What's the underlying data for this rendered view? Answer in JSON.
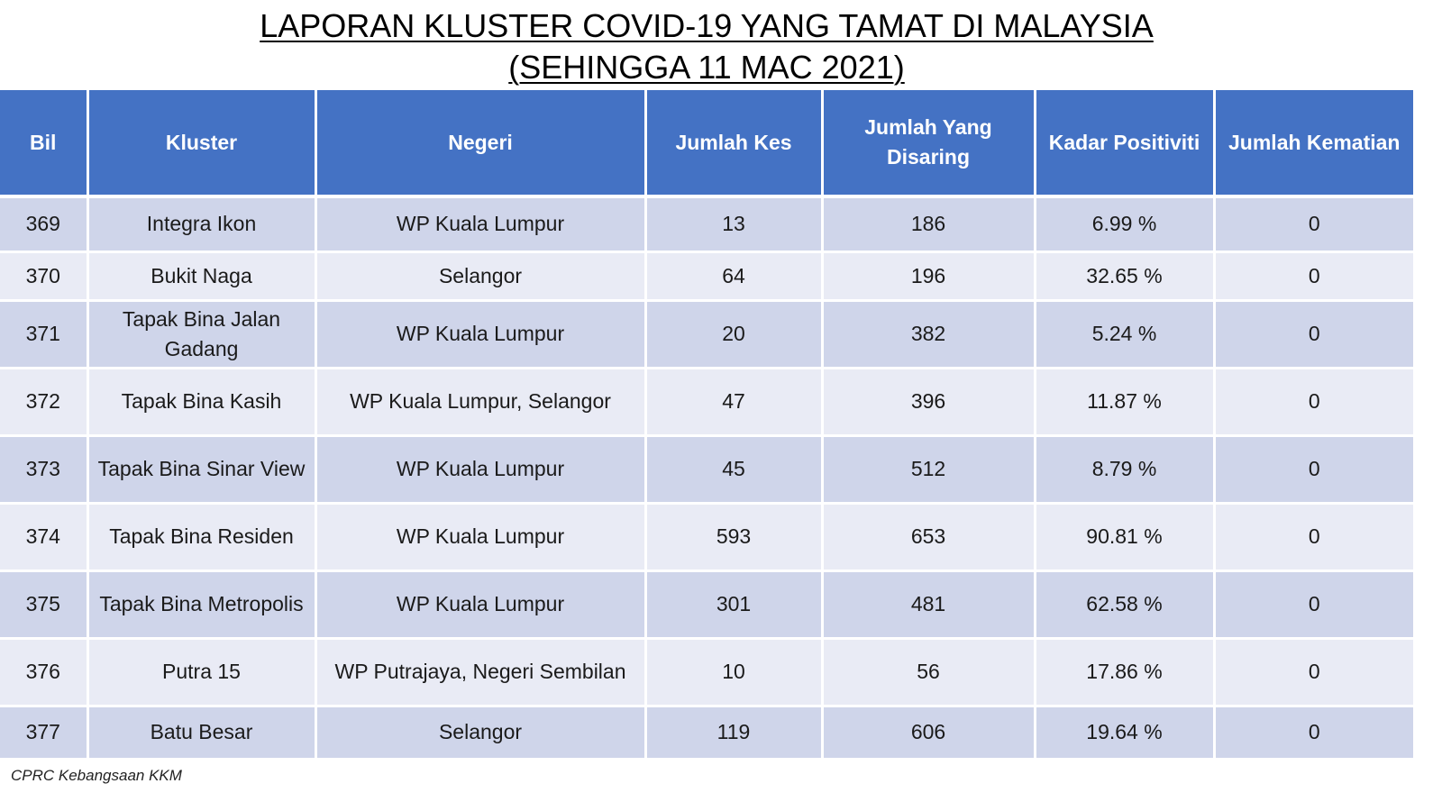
{
  "title": {
    "line1": "LAPORAN KLUSTER COVID-19 YANG TAMAT DI MALAYSIA",
    "line2": "(SEHINGGA  11 MAC 2021)"
  },
  "table": {
    "headers": {
      "bil": "Bil",
      "kluster": "Kluster",
      "negeri": "Negeri",
      "jumlah_kes": "Jumlah Kes",
      "jumlah_disaring": "Jumlah Yang Disaring",
      "kadar_positiviti": "Kadar Positiviti",
      "jumlah_kematian": "Jumlah Kematian"
    },
    "rows": [
      {
        "bil": "369",
        "kluster": "Integra Ikon",
        "negeri": "WP Kuala Lumpur",
        "kes": "13",
        "disaring": "186",
        "positiviti": "6.99 %",
        "kematian": "0"
      },
      {
        "bil": "370",
        "kluster": "Bukit Naga",
        "negeri": "Selangor",
        "kes": "64",
        "disaring": "196",
        "positiviti": "32.65 %",
        "kematian": "0"
      },
      {
        "bil": "371",
        "kluster": "Tapak Bina Jalan Gadang",
        "negeri": "WP Kuala Lumpur",
        "kes": "20",
        "disaring": "382",
        "positiviti": "5.24 %",
        "kematian": "0"
      },
      {
        "bil": "372",
        "kluster": "Tapak Bina Kasih",
        "negeri": "WP Kuala Lumpur, Selangor",
        "kes": "47",
        "disaring": "396",
        "positiviti": "11.87 %",
        "kematian": "0"
      },
      {
        "bil": "373",
        "kluster": "Tapak Bina Sinar View",
        "negeri": "WP Kuala Lumpur",
        "kes": "45",
        "disaring": "512",
        "positiviti": "8.79 %",
        "kematian": "0"
      },
      {
        "bil": "374",
        "kluster": "Tapak Bina Residen",
        "negeri": "WP Kuala Lumpur",
        "kes": "593",
        "disaring": "653",
        "positiviti": "90.81 %",
        "kematian": "0"
      },
      {
        "bil": "375",
        "kluster": "Tapak Bina Metropolis",
        "negeri": "WP Kuala Lumpur",
        "kes": "301",
        "disaring": "481",
        "positiviti": "62.58 %",
        "kematian": "0"
      },
      {
        "bil": "376",
        "kluster": "Putra 15",
        "negeri": "WP Putrajaya, Negeri Sembilan",
        "kes": "10",
        "disaring": "56",
        "positiviti": "17.86 %",
        "kematian": "0"
      },
      {
        "bil": "377",
        "kluster": "Batu Besar",
        "negeri": "Selangor",
        "kes": "119",
        "disaring": "606",
        "positiviti": "19.64 %",
        "kematian": "0"
      }
    ]
  },
  "footer": {
    "source": "CPRC Kebangsaan KKM"
  },
  "colors": {
    "header_bg": "#4472c4",
    "row_dark": "#cfd5ea",
    "row_light": "#e9ebf5"
  }
}
